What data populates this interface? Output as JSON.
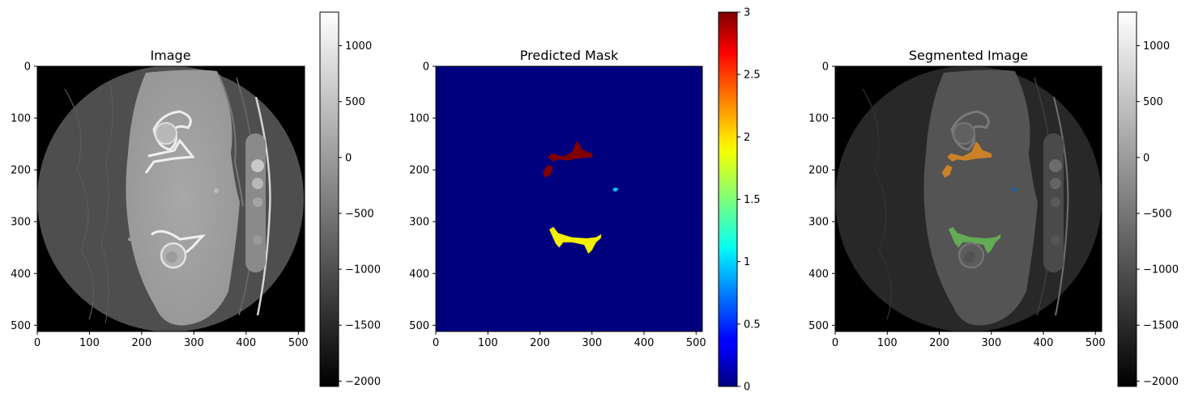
{
  "chart_data": [
    {
      "type": "heatmap",
      "title": "Image",
      "colormap": "gray",
      "xlim": [
        0,
        512
      ],
      "ylim": [
        512,
        0
      ],
      "x_ticks": [
        0,
        100,
        200,
        300,
        400,
        500
      ],
      "y_ticks": [
        0,
        100,
        200,
        300,
        400,
        500
      ],
      "colorbar": {
        "range": [
          -2048,
          1300
        ],
        "ticks": [
          1000,
          500,
          0,
          -500,
          -1000,
          -1500,
          -2000
        ]
      }
    },
    {
      "type": "heatmap",
      "title": "Predicted Mask",
      "colormap": "jet",
      "xlim": [
        0,
        512
      ],
      "ylim": [
        512,
        0
      ],
      "x_ticks": [
        0,
        100,
        200,
        300,
        400,
        500
      ],
      "y_ticks": [
        0,
        100,
        200,
        300,
        400,
        500
      ],
      "colorbar": {
        "range": [
          0,
          3
        ],
        "ticks": [
          3.0,
          2.5,
          2.0,
          1.5,
          1.0,
          0.5,
          0.0
        ]
      },
      "regions": [
        {
          "class": 3,
          "color": "#800000",
          "points": [
            [
              210,
              215
            ],
            [
              205,
              205
            ],
            [
              215,
              190
            ],
            [
              225,
              195
            ],
            [
              220,
              210
            ]
          ]
        },
        {
          "class": 3,
          "color": "#800000",
          "points": [
            [
              215,
              175
            ],
            [
              222,
              168
            ],
            [
              245,
              174
            ],
            [
              262,
              165
            ],
            [
              270,
              145
            ],
            [
              276,
              150
            ],
            [
              283,
              162
            ],
            [
              300,
              168
            ],
            [
              301,
              176
            ],
            [
              275,
              178
            ],
            [
              250,
              182
            ],
            [
              235,
              180
            ],
            [
              225,
              184
            ]
          ]
        },
        {
          "class": 1,
          "color": "#00c8ff",
          "points": [
            [
              340,
              236
            ],
            [
              346,
              234
            ],
            [
              351,
              237
            ],
            [
              346,
              242
            ],
            [
              341,
              241
            ]
          ]
        },
        {
          "class": 2,
          "color": "#f2ef00",
          "points": [
            [
              218,
              315
            ],
            [
              226,
              310
            ],
            [
              235,
              322
            ],
            [
              260,
              330
            ],
            [
              290,
              332
            ],
            [
              308,
              330
            ],
            [
              318,
              324
            ],
            [
              317,
              332
            ],
            [
              308,
              340
            ],
            [
              300,
              355
            ],
            [
              293,
              362
            ],
            [
              285,
              345
            ],
            [
              262,
              340
            ],
            [
              245,
              340
            ],
            [
              237,
              350
            ],
            [
              230,
              342
            ]
          ]
        }
      ]
    },
    {
      "type": "heatmap",
      "title": "Segmented Image",
      "colormap": "gray",
      "xlim": [
        0,
        512
      ],
      "ylim": [
        512,
        0
      ],
      "x_ticks": [
        0,
        100,
        200,
        300,
        400,
        500
      ],
      "y_ticks": [
        0,
        100,
        200,
        300,
        400,
        500
      ],
      "colorbar": {
        "range": [
          -2048,
          1300
        ],
        "ticks": [
          1000,
          500,
          0,
          -500,
          -1000,
          -1500,
          -2000
        ]
      },
      "overlay_colors": [
        "#e08a20",
        "#1060c0",
        "#66bb55"
      ]
    }
  ]
}
